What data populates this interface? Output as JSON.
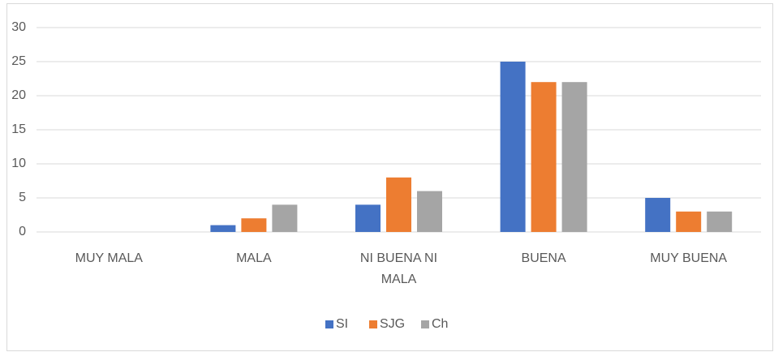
{
  "chart_data": {
    "type": "bar",
    "categories": [
      "MUY MALA",
      "MALA",
      "NI BUENA NI MALA",
      "BUENA",
      "MUY BUENA"
    ],
    "series": [
      {
        "name": "SI",
        "color": "#4472c4",
        "values": [
          0,
          1,
          4,
          25,
          5
        ]
      },
      {
        "name": "SJG",
        "color": "#ed7d31",
        "values": [
          0,
          2,
          8,
          22,
          3
        ]
      },
      {
        "name": "Ch",
        "color": "#a5a5a5",
        "values": [
          0,
          4,
          6,
          22,
          3
        ]
      }
    ],
    "ylim": [
      0,
      30
    ],
    "yticks": [
      0,
      5,
      10,
      15,
      20,
      25,
      30
    ],
    "grid": true,
    "legend": "bottom"
  }
}
